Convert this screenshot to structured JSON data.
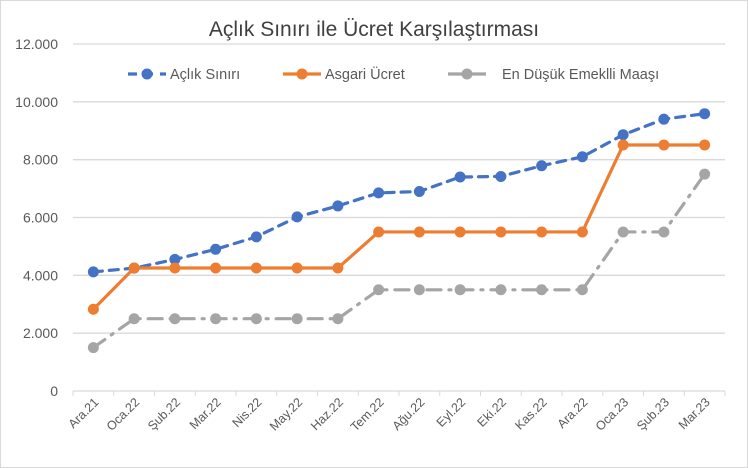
{
  "chart_data": {
    "type": "line",
    "title": "Açlık Sınırı ile Ücret Karşılaştırması",
    "xlabel": "",
    "ylabel": "",
    "ylim": [
      0,
      12000
    ],
    "yticks": [
      0,
      2000,
      4000,
      6000,
      8000,
      10000,
      12000
    ],
    "ytick_labels": [
      "0",
      "2.000",
      "4.000",
      "6.000",
      "8.000",
      "10.000",
      "12.000"
    ],
    "grid": true,
    "legend_position": "top",
    "categories": [
      "Ara.21",
      "Oca.22",
      "Şub.22",
      "Mar.22",
      "Nis.22",
      "May.22",
      "Haz.22",
      "Tem.22",
      "Ağu.22",
      "Eyl.22",
      "Eki.22",
      "Kas.22",
      "Ara.22",
      "Oca.23",
      "Şub.23",
      "Mar.23"
    ],
    "series": [
      {
        "name": "Açlık Sınırı",
        "color": "#4472c4",
        "style": "dashed",
        "marker": "circle",
        "values": [
          4120,
          4250,
          4550,
          4900,
          5330,
          6020,
          6400,
          6850,
          6900,
          7400,
          7420,
          7790,
          8100,
          8860,
          9400,
          9590
        ]
      },
      {
        "name": "Asgari  Ücret",
        "color": "#ed7d31",
        "style": "solid",
        "marker": "circle",
        "values": [
          2826,
          4253,
          4253,
          4253,
          4253,
          4253,
          4253,
          5500,
          5500,
          5500,
          5500,
          5500,
          5500,
          8507,
          8507,
          8507
        ]
      },
      {
        "name": "En Düşük  Emeklli Maaşı",
        "color": "#a5a5a5",
        "style": "dashdot",
        "marker": "circle",
        "values": [
          1500,
          2500,
          2500,
          2500,
          2500,
          2500,
          2500,
          3500,
          3500,
          3500,
          3500,
          3500,
          3500,
          5500,
          5500,
          7500
        ]
      }
    ]
  }
}
